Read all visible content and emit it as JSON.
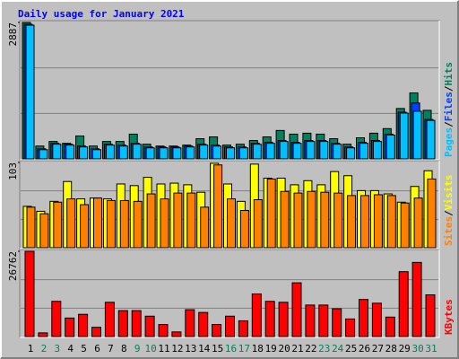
{
  "title": "Daily usage for January 2021",
  "legend_separator": "/",
  "chart_data": [
    {
      "type": "bar",
      "ylim": [
        0,
        2887
      ],
      "yticks": [
        2887
      ],
      "series": [
        {
          "name": "Hits",
          "color": "#00805c",
          "values": [
            2887,
            271,
            368,
            329,
            484,
            271,
            368,
            368,
            523,
            310,
            271,
            271,
            291,
            426,
            465,
            291,
            310,
            388,
            465,
            601,
            523,
            543,
            523,
            426,
            310,
            446,
            543,
            640,
            1066,
            1395,
            1027
          ]
        },
        {
          "name": "Files",
          "color": "#0040ff",
          "values": [
            2849,
            213,
            329,
            310,
            271,
            213,
            310,
            291,
            329,
            252,
            252,
            252,
            271,
            310,
            291,
            252,
            252,
            329,
            349,
            388,
            349,
            388,
            388,
            329,
            252,
            349,
            388,
            523,
            988,
            1182,
            833
          ]
        },
        {
          "name": "Pages",
          "color": "#00c0ff",
          "values": [
            2829,
            194,
            310,
            291,
            252,
            194,
            291,
            271,
            310,
            233,
            233,
            233,
            252,
            291,
            271,
            233,
            233,
            310,
            329,
            368,
            329,
            368,
            368,
            310,
            233,
            329,
            368,
            504,
            969,
            1008,
            814
          ]
        }
      ]
    },
    {
      "type": "bar",
      "ylim": [
        0,
        103
      ],
      "yticks": [
        103
      ],
      "series": [
        {
          "name": "Visits",
          "color": "#ffff00",
          "values": [
            50,
            44,
            56,
            80,
            59,
            60,
            59,
            77,
            75,
            85,
            77,
            78,
            76,
            67,
            102,
            77,
            56,
            101,
            84,
            84,
            76,
            81,
            76,
            92,
            87,
            69,
            69,
            65,
            55,
            74,
            93
          ]
        },
        {
          "name": "Sites",
          "color": "#ff8000",
          "values": [
            49,
            41,
            55,
            59,
            52,
            60,
            57,
            57,
            56,
            65,
            59,
            66,
            66,
            49,
            100,
            59,
            45,
            58,
            83,
            68,
            66,
            68,
            67,
            66,
            63,
            63,
            64,
            63,
            54,
            60,
            83
          ]
        }
      ]
    },
    {
      "type": "bar",
      "ylim": [
        0,
        26762
      ],
      "yticks": [
        26762
      ],
      "categories": [
        "1",
        "2",
        "3",
        "4",
        "5",
        "6",
        "7",
        "8",
        "9",
        "10",
        "11",
        "12",
        "13",
        "14",
        "15",
        "16",
        "17",
        "18",
        "19",
        "20",
        "21",
        "22",
        "23",
        "24",
        "25",
        "26",
        "27",
        "28",
        "29",
        "30",
        "31"
      ],
      "category_colors": [
        "#000000",
        "#00805c",
        "#00805c",
        "#000000",
        "#000000",
        "#000000",
        "#000000",
        "#000000",
        "#00805c",
        "#00805c",
        "#000000",
        "#000000",
        "#000000",
        "#000000",
        "#000000",
        "#00805c",
        "#00805c",
        "#000000",
        "#000000",
        "#000000",
        "#000000",
        "#000000",
        "#00805c",
        "#00805c",
        "#000000",
        "#000000",
        "#000000",
        "#000000",
        "#000000",
        "#00805c",
        "#00805c"
      ],
      "series": [
        {
          "name": "KBytes",
          "color": "#ff0000",
          "values": [
            26762,
            1164,
            11058,
            5820,
            6984,
            2910,
            10767,
            8148,
            8148,
            6402,
            3783,
            1455,
            8439,
            7566,
            3783,
            6402,
            4947,
            13386,
            11058,
            10767,
            16878,
            9894,
            9894,
            8730,
            5529,
            11640,
            10476,
            6111,
            20370,
            23280,
            13095
          ]
        }
      ]
    }
  ]
}
